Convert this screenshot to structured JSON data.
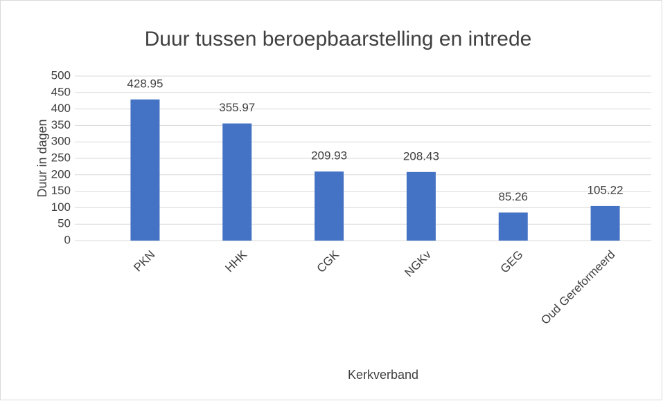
{
  "chart_data": {
    "type": "bar",
    "title": "Duur tussen beroepbaarstelling en intrede",
    "x_label": "Kerkverband",
    "y_label": "Duur in dagen",
    "categories": [
      "PKN",
      "HHK",
      "CGK",
      "NGKv",
      "GEG",
      "Oud Gereformeerd"
    ],
    "values": [
      428.95,
      355.97,
      209.93,
      208.43,
      85.26,
      105.22
    ],
    "color": "#4472c4",
    "ylim": [
      0,
      500
    ],
    "yticks": [
      0,
      50,
      100,
      150,
      200,
      250,
      300,
      350,
      400,
      450,
      500
    ],
    "grid": true
  }
}
